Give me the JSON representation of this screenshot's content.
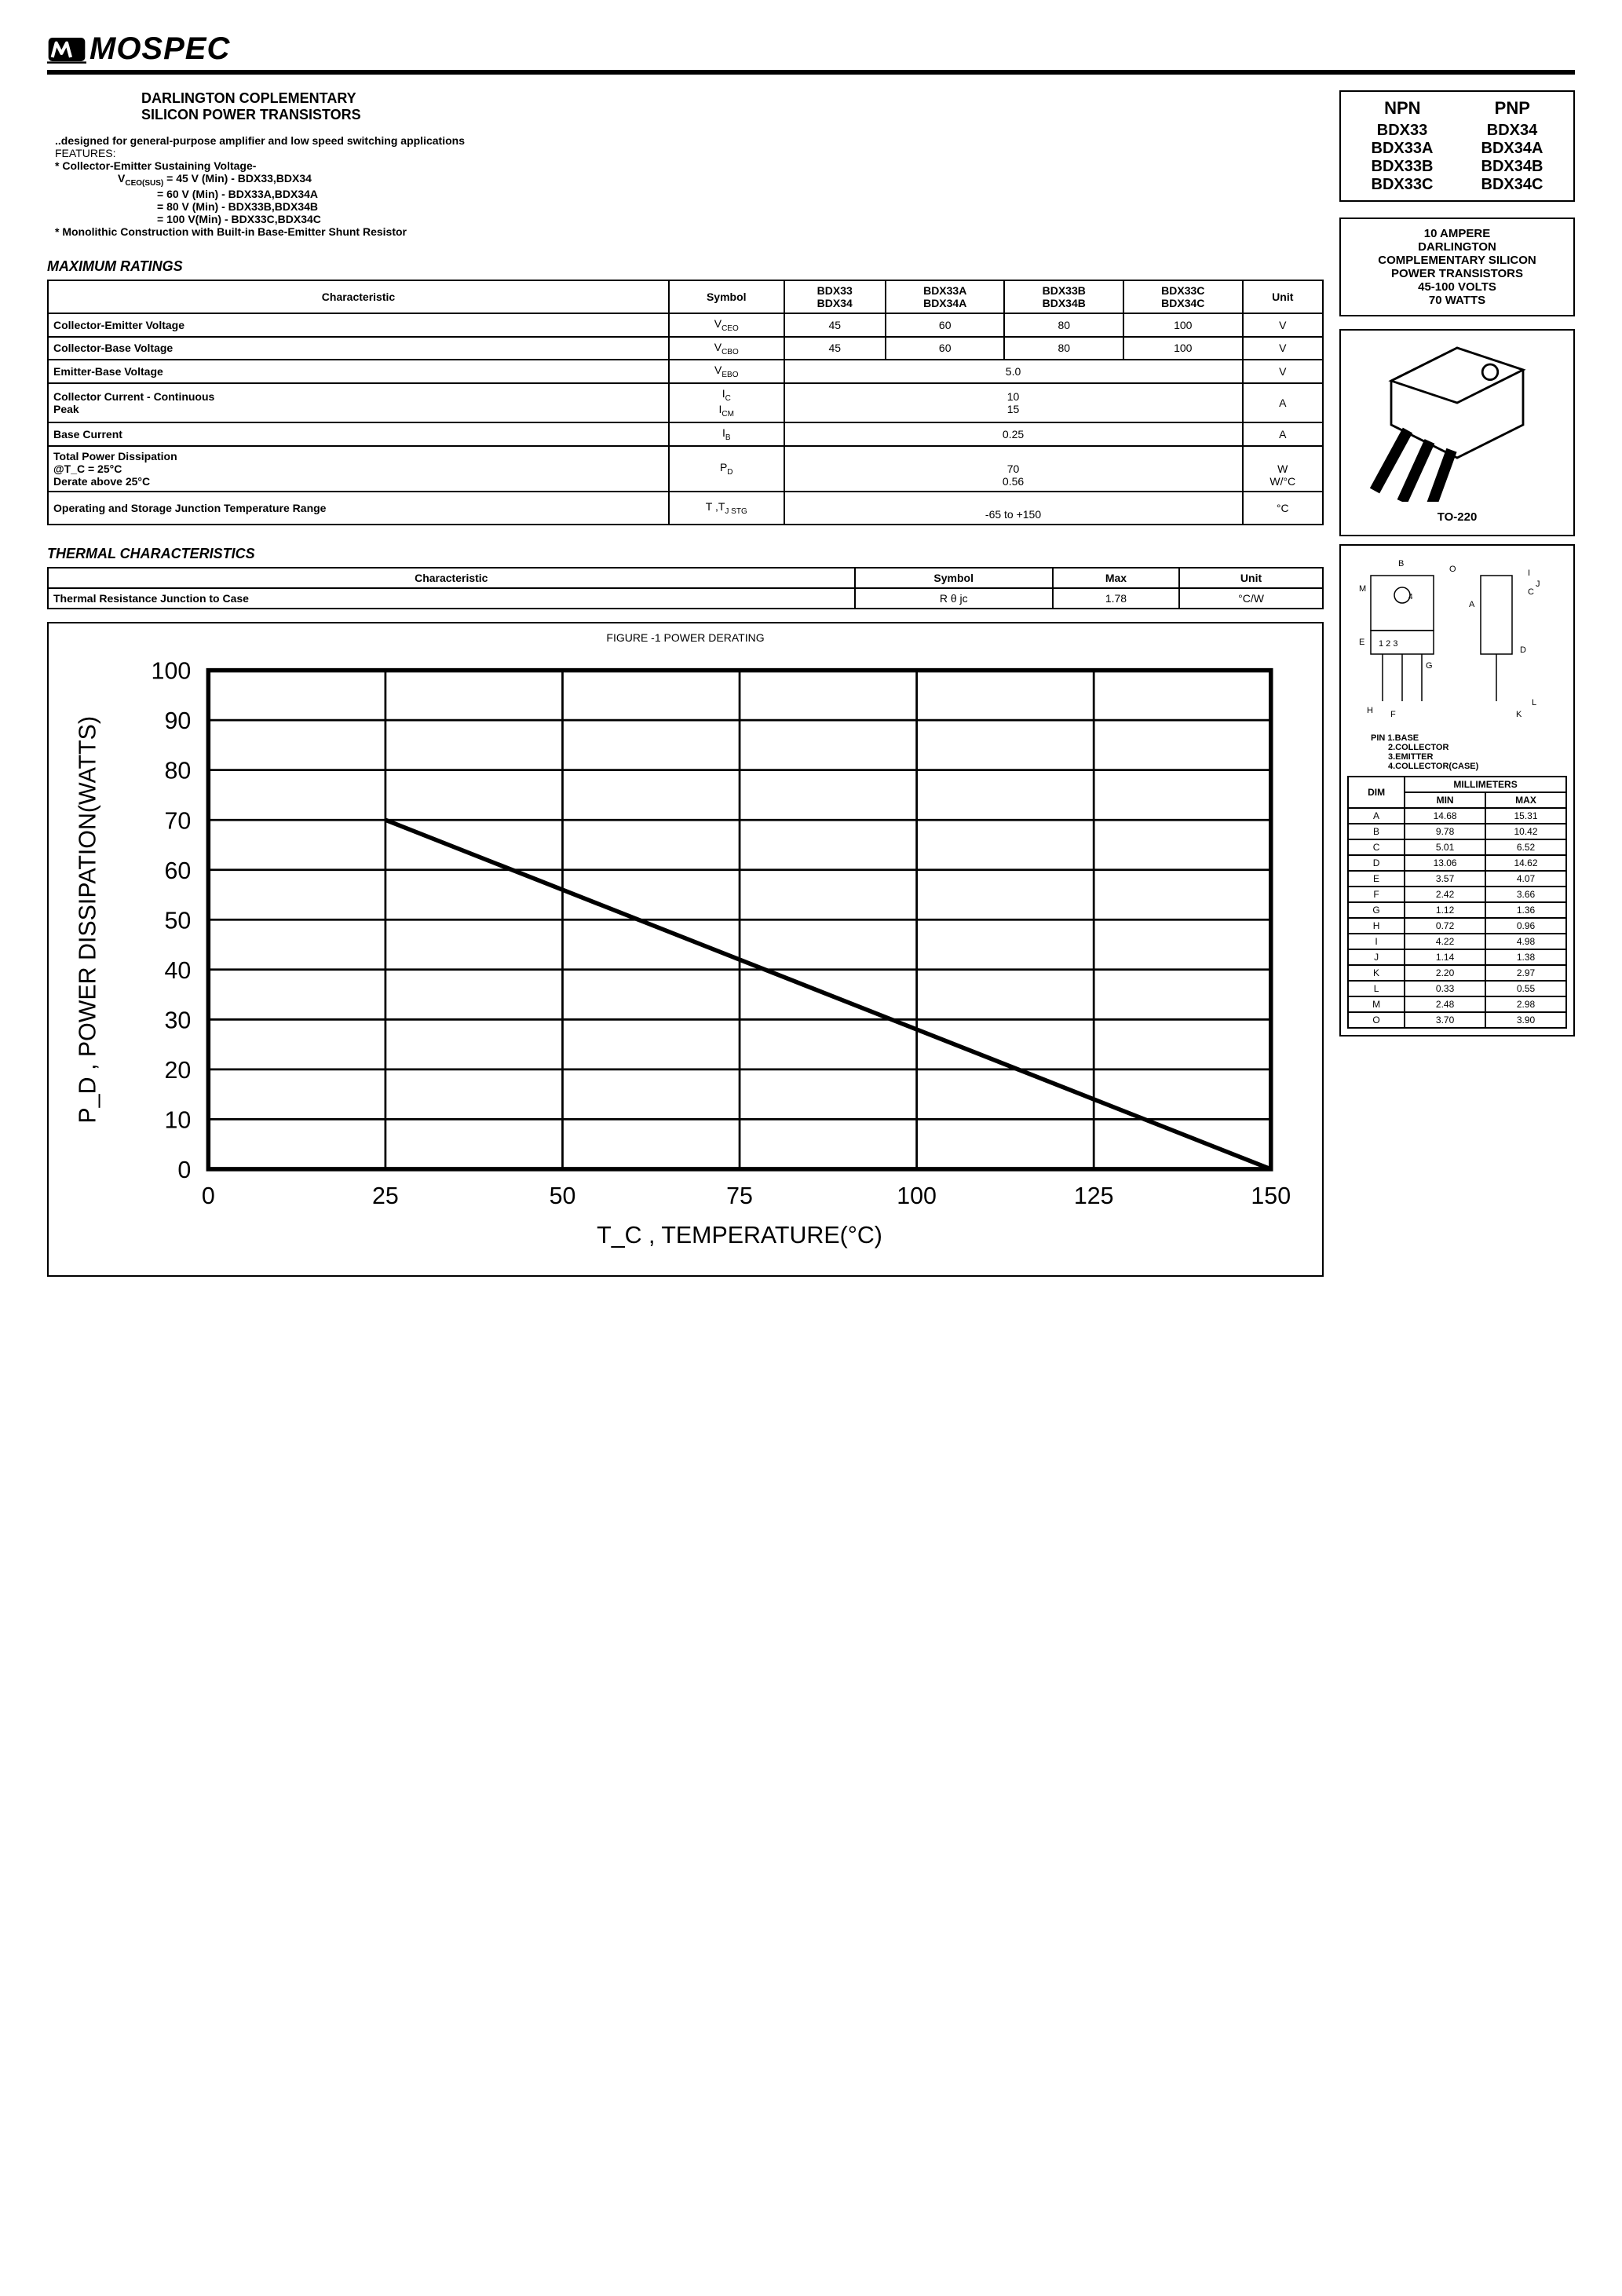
{
  "logo_text": "MOSPEC",
  "title1": "DARLINGTON   COPLEMENTARY",
  "title2": "SILICON POWER TRANSISTORS",
  "description": "..designed for general-purpose amplifier and  low speed switching applications",
  "features_label": "FEATURES:",
  "feature1": "* Collector-Emitter Sustaining Voltage-",
  "feature_vceo": "V",
  "feature_vceo_sub": "CEO(SUS)",
  "feature_lines": [
    " = 45 V (Min) - BDX33,BDX34",
    " = 60 V (Min) - BDX33A,BDX34A",
    " = 80 V (Min) - BDX33B,BDX34B",
    " = 100 V(Min) - BDX33C,BDX34C"
  ],
  "feature2": "* Monolithic Construction with Built-in Base-Emitter Shunt Resistor",
  "max_ratings_title": "MAXIMUM RATINGS",
  "ratings_headers": [
    "Characteristic",
    "Symbol",
    "BDX33\nBDX34",
    "BDX33A\nBDX34A",
    "BDX33B\nBDX34B",
    "BDX33C\nBDX34C",
    "Unit"
  ],
  "ratings_rows": [
    {
      "char": "Collector-Emitter Voltage",
      "sym": "V",
      "sub": "CEO",
      "vals": [
        "45",
        "60",
        "80",
        "100"
      ],
      "unit": "V",
      "span": false
    },
    {
      "char": "Collector-Base Voltage",
      "sym": "V",
      "sub": "CBO",
      "vals": [
        "45",
        "60",
        "80",
        "100"
      ],
      "unit": "V",
      "span": false
    },
    {
      "char": "Emitter-Base Voltage",
      "sym": "V",
      "sub": "EBO",
      "vals": [
        "5.0"
      ],
      "unit": "V",
      "span": true
    },
    {
      "char": "Collector Current - Continuous\n                                    Peak",
      "sym": "I\nI",
      "sub": "C\nCM",
      "vals": [
        "10\n15"
      ],
      "unit": "A",
      "span": true
    },
    {
      "char": "Base Current",
      "sym": "I",
      "sub": "B",
      "vals": [
        "0.25"
      ],
      "unit": "A",
      "span": true
    },
    {
      "char": "Total Power Dissipation\n        @T_C = 25°C\n        Derate above 25°C",
      "sym": "P",
      "sub": "D",
      "vals": [
        "\n70\n0.56"
      ],
      "unit": "\nW\nW/°C",
      "span": true
    },
    {
      "char": "Operating and Storage Junction Temperature Range",
      "sym": "T ,T",
      "sub": "J   STG",
      "vals": [
        "\n-65 to +150"
      ],
      "unit": "°C",
      "span": true
    }
  ],
  "thermal_title": "THERMAL CHARACTERISTICS",
  "thermal_headers": [
    "Characteristic",
    "Symbol",
    "Max",
    "Unit"
  ],
  "thermal_row": {
    "char": "Thermal Resistance Junction to Case",
    "sym": "R θ jc",
    "max": "1.78",
    "unit": "°C/W"
  },
  "part_box": {
    "npn_label": "NPN",
    "pnp_label": "PNP",
    "rows": [
      [
        "BDX33",
        "BDX34"
      ],
      [
        "BDX33A",
        "BDX34A"
      ],
      [
        "BDX33B",
        "BDX34B"
      ],
      [
        "BDX33C",
        "BDX34C"
      ]
    ]
  },
  "spec_lines": [
    "10 AMPERE",
    "DARLINGTON",
    "COMPLEMENTARY SILICON",
    "POWER TRANSISTORS",
    "45-100  VOLTS",
    "70  WATTS"
  ],
  "package_label": "TO-220",
  "pins": [
    "PIN 1.BASE",
    "2.COLLECTOR",
    "3.EMITTER",
    "4.COLLECTOR(CASE)"
  ],
  "dim_headers": [
    "DIM",
    "MILLIMETERS"
  ],
  "dim_subheaders": [
    "MIN",
    "MAX"
  ],
  "dim_rows": [
    [
      "A",
      "14.68",
      "15.31"
    ],
    [
      "B",
      "9.78",
      "10.42"
    ],
    [
      "C",
      "5.01",
      "6.52"
    ],
    [
      "D",
      "13.06",
      "14.62"
    ],
    [
      "E",
      "3.57",
      "4.07"
    ],
    [
      "F",
      "2.42",
      "3.66"
    ],
    [
      "G",
      "1.12",
      "1.36"
    ],
    [
      "H",
      "0.72",
      "0.96"
    ],
    [
      "I",
      "4.22",
      "4.98"
    ],
    [
      "J",
      "1.14",
      "1.38"
    ],
    [
      "K",
      "2.20",
      "2.97"
    ],
    [
      "L",
      "0.33",
      "0.55"
    ],
    [
      "M",
      "2.48",
      "2.98"
    ],
    [
      "O",
      "3.70",
      "3.90"
    ]
  ],
  "chart": {
    "type": "line",
    "title": "FIGURE -1 POWER DERATING",
    "xlabel": "T_C , TEMPERATURE(°C)",
    "ylabel": "P_D , POWER DISSIPATION(WATTS)",
    "xlim": [
      0,
      150
    ],
    "ylim": [
      0,
      100
    ],
    "xticks": [
      0,
      25,
      50,
      75,
      100,
      125,
      150
    ],
    "yticks": [
      0,
      10,
      20,
      30,
      40,
      50,
      60,
      70,
      80,
      90,
      100
    ],
    "line_points": [
      [
        25,
        70
      ],
      [
        150,
        0
      ]
    ],
    "line_color": "#000000",
    "line_width": 2,
    "background_color": "#ffffff",
    "grid_color": "#000000",
    "axis_fontsize": 11,
    "tick_fontsize": 11
  }
}
